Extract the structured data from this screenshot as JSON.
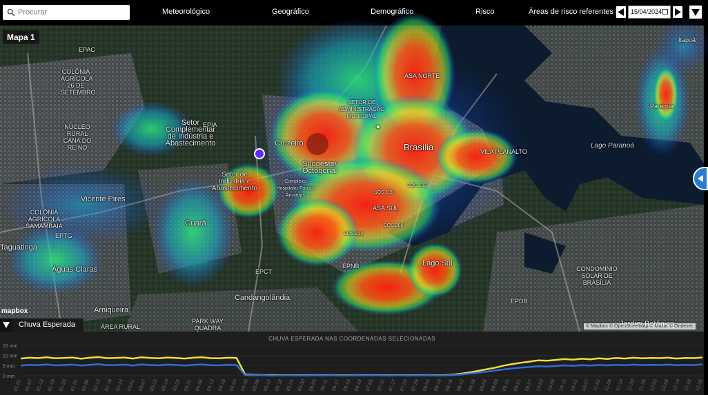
{
  "search": {
    "placeholder": "Procurar",
    "icon": "search-icon"
  },
  "nav": [
    "Meteorológico",
    "Geográfico",
    "Demográfico",
    "Risco"
  ],
  "risk_dates": {
    "label": "Áreas de risco referentes a",
    "date": "15/04/2024"
  },
  "map": {
    "badge": "Mapa 1",
    "logo": "mapbox",
    "attribution": "© Mapbox © OpenStreetMap © Maxar © Ondesec",
    "layer_toggle_label": "Chuva Esperada",
    "colors": {
      "heat_low": "#1f6cff",
      "heat_mid": "#2ef07a",
      "heat_high": "#ff2a12",
      "marker": "#5a2cff"
    },
    "places": [
      "EPAC",
      "COLÔNIA AGRÍCOLA 26 DE SETEMBRO",
      "NÚCLEO RURAL CANA DO REINO",
      "Setor Complementar de Indústria e Abastecimento",
      "EPIA",
      "Cruzeiro",
      "Sudoeste/ Octogonal",
      "Setor de Indústria e Abastecimento",
      "Complexo Hospitalar Forças Armadas",
      "Vicente Pires",
      "COLÔNIA AGRÍCOLA SAMAMBAIA",
      "Guará",
      "Taguatinga",
      "Águas Claras",
      "Candangolândia",
      "Arniqueira",
      "ÁREA RURAL",
      "PARK WAY QUADRA 05",
      "Brasília",
      "SETOR DE ADMINISTRAÇÃO MUNICIPAL",
      "ASA NORTE",
      "ASA SUL",
      "SQS 102",
      "SQS 109",
      "SQS 212",
      "SQS 208",
      "VILA PLANALTO",
      "Lago Sul",
      "Lago Paranoá",
      "Paranoá",
      "Itapoã",
      "CONDOMÍNIO SOLAR DE BRASÍLIA",
      "Jardim Botânico",
      "EPDB",
      "EPCT",
      "EPNB",
      "EPTG"
    ]
  },
  "chart_data": {
    "type": "line",
    "title": "CHUVA ESPERADA NAS COORDENADAS SELECIONADAS",
    "ylabel": "mm",
    "y_ticks": [
      "15 mm",
      "10 mm",
      "5 mm",
      "0 mm"
    ],
    "ylim": [
      0,
      15
    ],
    "x_ticks": [
      "01-01",
      "01-07",
      "01-13",
      "01-19",
      "01-25",
      "01-31",
      "02-06",
      "02-12",
      "02-18",
      "02-24",
      "03-01",
      "03-07",
      "03-13",
      "03-19",
      "03-25",
      "03-31",
      "04-06",
      "04-12",
      "04-18",
      "04-24",
      "04-30",
      "05-06",
      "05-12",
      "05-18",
      "05-24",
      "05-30",
      "06-05",
      "06-11",
      "06-17",
      "06-23",
      "06-29",
      "07-05",
      "07-11",
      "07-17",
      "07-23",
      "07-29",
      "08-04",
      "08-10",
      "08-16",
      "08-22",
      "08-28",
      "09-03",
      "09-09",
      "09-15",
      "09-21",
      "09-27",
      "10-03",
      "10-09",
      "10-15",
      "10-21",
      "10-27",
      "11-02",
      "11-08",
      "11-14",
      "11-20",
      "11-26",
      "12-02",
      "12-08",
      "12-14",
      "12-20",
      "12-26"
    ],
    "series": [
      {
        "color": "#f0e13a",
        "values": [
          8.5,
          8.9,
          8.7,
          9.1,
          8.6,
          8.8,
          9.0,
          8.4,
          8.9,
          9.2,
          8.7,
          8.8,
          9.0,
          8.5,
          9.1,
          8.8,
          8.6,
          9.0,
          8.8,
          8.5,
          8.9,
          9.1,
          8.7,
          8.6,
          8.9,
          8.8,
          0.6,
          0.4,
          0.3,
          0.3,
          0.2,
          0.3,
          0.2,
          0.2,
          0.3,
          0.2,
          0.3,
          0.2,
          0.2,
          0.3,
          0.2,
          0.3,
          0.2,
          0.2,
          0.3,
          0.2,
          0.2,
          0.3,
          0.2,
          0.2,
          0.5,
          1.0,
          1.6,
          2.4,
          3.2,
          4.0,
          5.0,
          5.8,
          6.4,
          7.0,
          7.6,
          7.4,
          7.8,
          8.2,
          7.9,
          8.4,
          8.1,
          8.6,
          8.3,
          8.8,
          8.5,
          8.9,
          8.6,
          8.8,
          8.7,
          8.9,
          8.5,
          8.8,
          8.7,
          9.0
        ]
      },
      {
        "color": "#2f6bd6",
        "values": [
          5.0,
          5.4,
          5.2,
          5.6,
          5.1,
          5.3,
          5.5,
          5.0,
          5.4,
          5.7,
          5.2,
          5.3,
          5.5,
          5.0,
          5.6,
          5.3,
          5.1,
          5.5,
          5.3,
          5.0,
          5.4,
          5.6,
          5.2,
          5.1,
          5.4,
          5.3,
          0.3,
          0.2,
          0.2,
          0.1,
          0.1,
          0.2,
          0.1,
          0.1,
          0.2,
          0.1,
          0.2,
          0.1,
          0.1,
          0.2,
          0.1,
          0.2,
          0.1,
          0.1,
          0.2,
          0.1,
          0.1,
          0.2,
          0.1,
          0.1,
          0.3,
          0.6,
          1.0,
          1.5,
          2.0,
          2.6,
          3.1,
          3.6,
          4.0,
          4.3,
          4.7,
          4.5,
          4.8,
          5.1,
          4.9,
          5.2,
          5.0,
          5.3,
          5.1,
          5.4,
          5.2,
          5.5,
          5.3,
          5.4,
          5.3,
          5.5,
          5.2,
          5.4,
          5.3,
          5.6
        ]
      }
    ]
  }
}
